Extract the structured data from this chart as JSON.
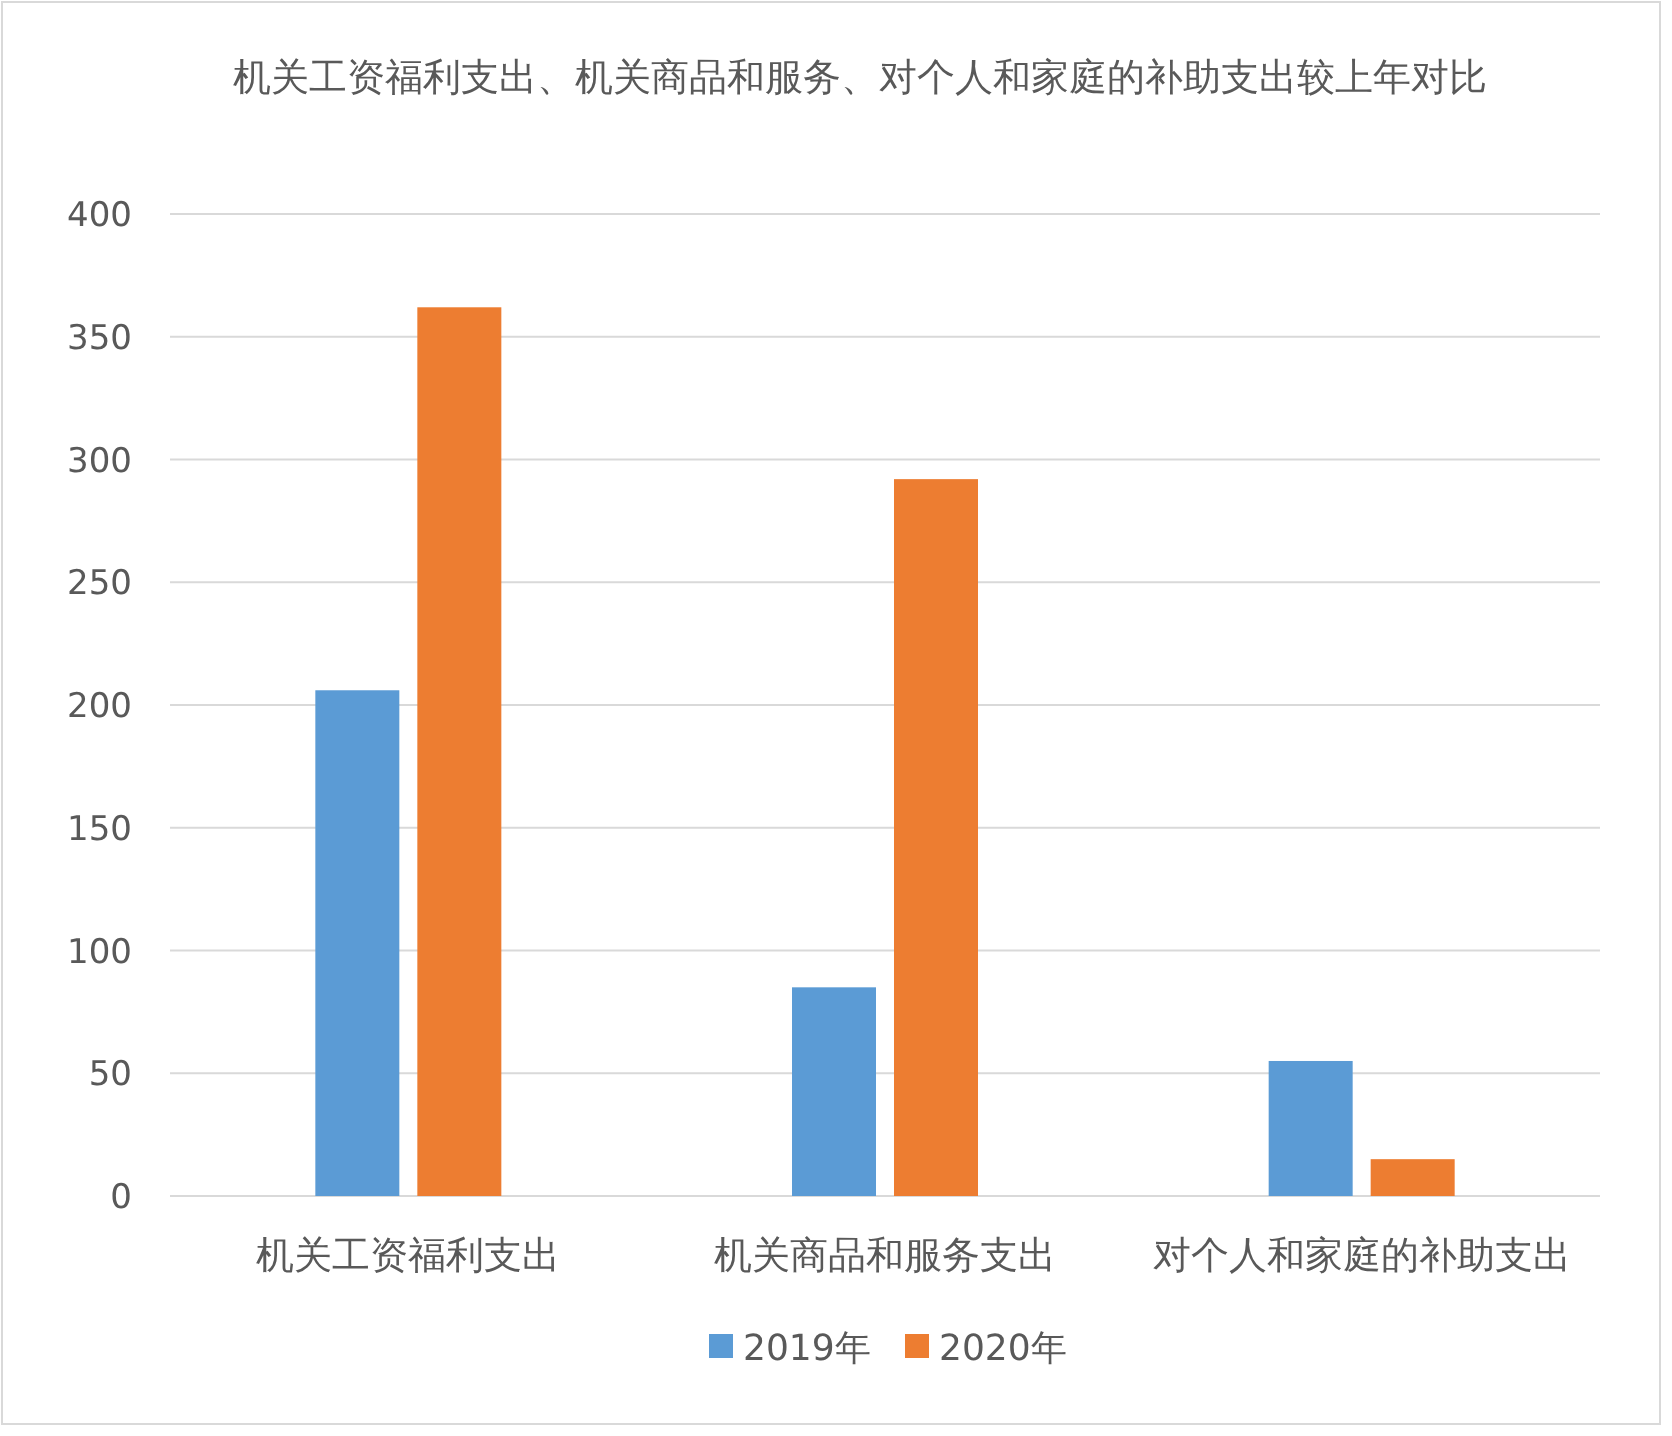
{
  "chart_data": {
    "type": "bar",
    "title": "机关工资福利支出、机关商品和服务、对个人和家庭的补助支出较上年对比",
    "categories": [
      "机关工资福利支出",
      "机关商品和服务支出",
      "对个人和家庭的补助支出"
    ],
    "series": [
      {
        "name": "2019年",
        "color": "#5b9bd5",
        "values": [
          206,
          85,
          55
        ]
      },
      {
        "name": "2020年",
        "color": "#ed7d31",
        "values": [
          362,
          292,
          15
        ]
      }
    ],
    "ylim": [
      0,
      400
    ],
    "yticks": [
      0,
      50,
      100,
      150,
      200,
      250,
      300,
      350,
      400
    ],
    "grid": "y",
    "legend": "bottom"
  }
}
